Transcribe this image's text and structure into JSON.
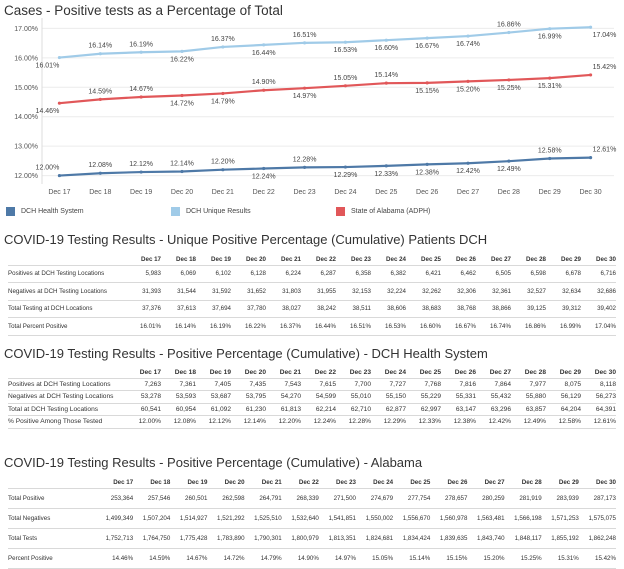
{
  "chart_data": {
    "type": "line",
    "title": "Cases - Positive tests as a Percentage of Total",
    "categories": [
      "Dec 17",
      "Dec 18",
      "Dec 19",
      "Dec 20",
      "Dec 21",
      "Dec 22",
      "Dec 23",
      "Dec 24",
      "Dec 25",
      "Dec 26",
      "Dec 27",
      "Dec 28",
      "Dec 29",
      "Dec 30"
    ],
    "y_ticks": [
      "12.00%",
      "13.00%",
      "14.00%",
      "15.00%",
      "16.00%",
      "17.00%"
    ],
    "ylim": [
      11.85,
      17.15
    ],
    "grid": true,
    "legend_position": "bottom",
    "series": [
      {
        "name": "DCH Health System",
        "color": "#4e79a7",
        "values": [
          12.0,
          12.08,
          12.12,
          12.14,
          12.2,
          12.24,
          12.28,
          12.29,
          12.33,
          12.38,
          12.42,
          12.49,
          12.58,
          12.61
        ],
        "labels": [
          "12.00%",
          "12.08%",
          "12.12%",
          "12.14%",
          "12.20%",
          "12.24%",
          "12.28%",
          "12.29%",
          "12.33%",
          "12.38%",
          "12.42%",
          "12.49%",
          "12.58%",
          "12.61%"
        ]
      },
      {
        "name": "DCH Unique Results",
        "color": "#a0cbe8",
        "values": [
          16.01,
          16.14,
          16.19,
          16.22,
          16.37,
          16.44,
          16.51,
          16.53,
          16.6,
          16.67,
          16.74,
          16.86,
          16.99,
          17.04
        ],
        "labels": [
          "16.01%",
          "16.14%",
          "16.19%",
          "16.22%",
          "16.37%",
          "16.44%",
          "16.51%",
          "16.53%",
          "16.60%",
          "16.67%",
          "16.74%",
          "16.86%",
          "16.99%",
          "17.04%"
        ]
      },
      {
        "name": "State of Alabama (ADPH)",
        "color": "#e15759",
        "values": [
          14.46,
          14.59,
          14.67,
          14.72,
          14.79,
          14.9,
          14.97,
          15.05,
          15.14,
          15.15,
          15.2,
          15.25,
          15.31,
          15.42
        ],
        "labels": [
          "14.46%",
          "14.59%",
          "14.67%",
          "14.72%",
          "14.79%",
          "14.90%",
          "14.97%",
          "15.05%",
          "15.14%",
          "15.15%",
          "15.20%",
          "15.25%",
          "15.31%",
          "15.42%"
        ]
      }
    ]
  },
  "tables": [
    {
      "title": "COVID-19 Testing Results - Unique Positive Percentage (Cumulative) Patients DCH",
      "columns": [
        "Dec 17",
        "Dec 18",
        "Dec 19",
        "Dec 20",
        "Dec 21",
        "Dec 22",
        "Dec 23",
        "Dec 24",
        "Dec 25",
        "Dec 26",
        "Dec 27",
        "Dec 28",
        "Dec 29",
        "Dec 30"
      ],
      "rows": [
        {
          "label": "Positives at DCH Testing Locations",
          "values": [
            "5,983",
            "6,069",
            "6,102",
            "6,128",
            "6,224",
            "6,287",
            "6,358",
            "6,382",
            "6,421",
            "6,462",
            "6,505",
            "6,598",
            "6,678",
            "6,716"
          ]
        },
        {
          "label": "Negatives at DCH Testing Locations",
          "values": [
            "31,393",
            "31,544",
            "31,592",
            "31,652",
            "31,803",
            "31,955",
            "32,153",
            "32,224",
            "32,262",
            "32,306",
            "32,361",
            "32,527",
            "32,634",
            "32,686"
          ]
        },
        {
          "label": "Total Testing at DCH Locations",
          "values": [
            "37,376",
            "37,613",
            "37,694",
            "37,780",
            "38,027",
            "38,242",
            "38,511",
            "38,606",
            "38,683",
            "38,768",
            "38,866",
            "39,125",
            "39,312",
            "39,402"
          ]
        },
        {
          "label": "Total Percent Positive",
          "values": [
            "16.01%",
            "16.14%",
            "16.19%",
            "16.22%",
            "16.37%",
            "16.44%",
            "16.51%",
            "16.53%",
            "16.60%",
            "16.67%",
            "16.74%",
            "16.86%",
            "16.99%",
            "17.04%"
          ]
        }
      ]
    },
    {
      "title": "COVID-19 Testing Results - Positive Percentage (Cumulative) - DCH Health System",
      "columns": [
        "Dec 17",
        "Dec 18",
        "Dec 19",
        "Dec 20",
        "Dec 21",
        "Dec 22",
        "Dec 23",
        "Dec 24",
        "Dec 25",
        "Dec 26",
        "Dec 27",
        "Dec 28",
        "Dec 29",
        "Dec 30"
      ],
      "rows": [
        {
          "label": "Positives at DCH Testing Locations",
          "values": [
            "7,263",
            "7,361",
            "7,405",
            "7,435",
            "7,543",
            "7,615",
            "7,700",
            "7,727",
            "7,768",
            "7,816",
            "7,864",
            "7,977",
            "8,075",
            "8,118"
          ]
        },
        {
          "label": "Negatives at DCH Testing Locations",
          "values": [
            "53,278",
            "53,593",
            "53,687",
            "53,795",
            "54,270",
            "54,599",
            "55,010",
            "55,150",
            "55,229",
            "55,331",
            "55,432",
            "55,880",
            "56,129",
            "56,273"
          ]
        },
        {
          "label": "Total at DCH Testing Locations",
          "values": [
            "60,541",
            "60,954",
            "61,092",
            "61,230",
            "61,813",
            "62,214",
            "62,710",
            "62,877",
            "62,997",
            "63,147",
            "63,296",
            "63,857",
            "64,204",
            "64,391"
          ]
        },
        {
          "label": "% Positive Among Those Tested",
          "values": [
            "12.00%",
            "12.08%",
            "12.12%",
            "12.14%",
            "12.20%",
            "12.24%",
            "12.28%",
            "12.29%",
            "12.33%",
            "12.38%",
            "12.42%",
            "12.49%",
            "12.58%",
            "12.61%"
          ]
        }
      ]
    },
    {
      "title": "COVID-19 Testing Results - Positive Percentage (Cumulative) - Alabama",
      "columns": [
        "Dec 17",
        "Dec 18",
        "Dec 19",
        "Dec 20",
        "Dec 21",
        "Dec 22",
        "Dec 23",
        "Dec 24",
        "Dec 25",
        "Dec 26",
        "Dec 27",
        "Dec 28",
        "Dec 29",
        "Dec 30"
      ],
      "rows": [
        {
          "label": "Total Positive",
          "values": [
            "253,364",
            "257,546",
            "260,501",
            "262,598",
            "264,791",
            "268,339",
            "271,500",
            "274,679",
            "277,754",
            "278,657",
            "280,259",
            "281,919",
            "283,939",
            "287,173"
          ]
        },
        {
          "label": "Total Negatives",
          "values": [
            "1,499,349",
            "1,507,204",
            "1,514,927",
            "1,521,292",
            "1,525,510",
            "1,532,640",
            "1,541,851",
            "1,550,002",
            "1,556,670",
            "1,560,978",
            "1,563,481",
            "1,566,198",
            "1,571,253",
            "1,575,075"
          ]
        },
        {
          "label": "Total Tests",
          "values": [
            "1,752,713",
            "1,764,750",
            "1,775,428",
            "1,783,890",
            "1,790,301",
            "1,800,979",
            "1,813,351",
            "1,824,681",
            "1,834,424",
            "1,839,635",
            "1,843,740",
            "1,848,117",
            "1,855,192",
            "1,862,248"
          ]
        },
        {
          "label": "Percent Positive",
          "values": [
            "14.46%",
            "14.59%",
            "14.67%",
            "14.72%",
            "14.79%",
            "14.90%",
            "14.97%",
            "15.05%",
            "15.14%",
            "15.15%",
            "15.20%",
            "15.25%",
            "15.31%",
            "15.42%"
          ]
        }
      ]
    }
  ]
}
